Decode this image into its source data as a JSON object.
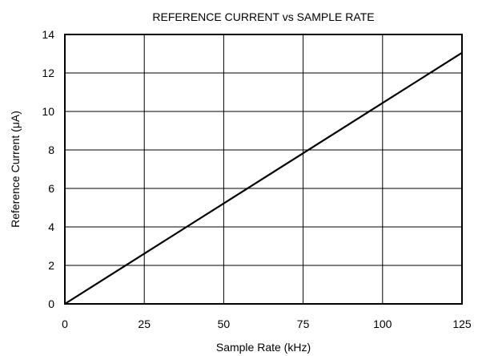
{
  "chart_data": {
    "type": "line",
    "title": "REFERENCE CURRENT vs SAMPLE RATE",
    "xlabel": "Sample Rate (kHz)",
    "ylabel": "Reference Current (μA)",
    "xlim": [
      0,
      125
    ],
    "ylim": [
      0,
      14
    ],
    "xticks": [
      0,
      25,
      50,
      75,
      100,
      125
    ],
    "yticks": [
      0,
      2,
      4,
      6,
      8,
      10,
      12,
      14
    ],
    "grid": true,
    "series": [
      {
        "x": [
          0,
          125
        ],
        "y": [
          0,
          13.05
        ],
        "color": "#000000"
      }
    ]
  }
}
